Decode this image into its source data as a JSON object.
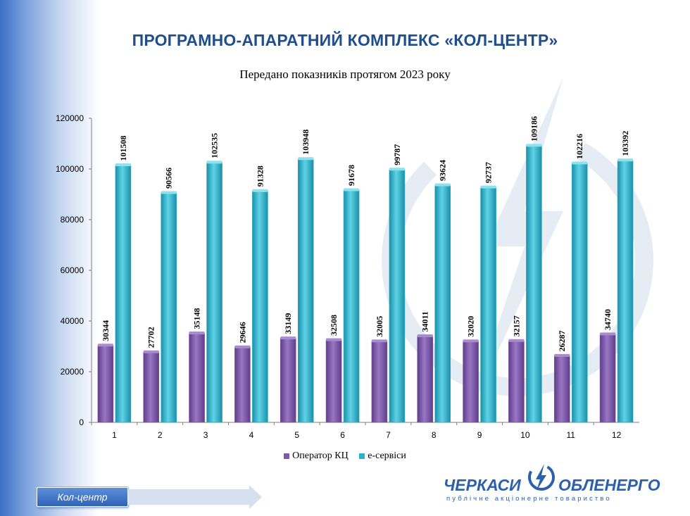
{
  "slide": {
    "title": "ПРОГРАМНО-АПАРАТНИЙ КОМПЛЕКС «КОЛ-ЦЕНТР»",
    "nav_label": "Кол-центр"
  },
  "logo": {
    "left_text": "ЧЕРКАСИ",
    "right_text": "ОБЛЕНЕРГО",
    "subtitle": "публічне акціонерне товариство"
  },
  "colors": {
    "title": "#1f4e8c",
    "operator": "#7e5aa8",
    "eservices": "#2bb3cc",
    "accent_blue": "#2d5fb0"
  },
  "chart_data": {
    "type": "bar",
    "title": "Передано показників протягом 2023 року",
    "categories": [
      "1",
      "2",
      "3",
      "4",
      "5",
      "6",
      "7",
      "8",
      "9",
      "10",
      "11",
      "12"
    ],
    "series": [
      {
        "name": "Оператор КЦ",
        "values": [
          30344,
          27702,
          35148,
          29646,
          33149,
          32508,
          32005,
          34011,
          32020,
          32157,
          26287,
          34740
        ]
      },
      {
        "name": "е-сервіси",
        "values": [
          101508,
          90566,
          102535,
          91328,
          103948,
          91678,
          99787,
          93624,
          92737,
          109186,
          102216,
          103392
        ]
      }
    ],
    "ylim": [
      0,
      120000
    ],
    "yticks": [
      0,
      20000,
      40000,
      60000,
      80000,
      100000,
      120000
    ],
    "legend_position": "bottom",
    "grid": false,
    "data_labels": true
  }
}
